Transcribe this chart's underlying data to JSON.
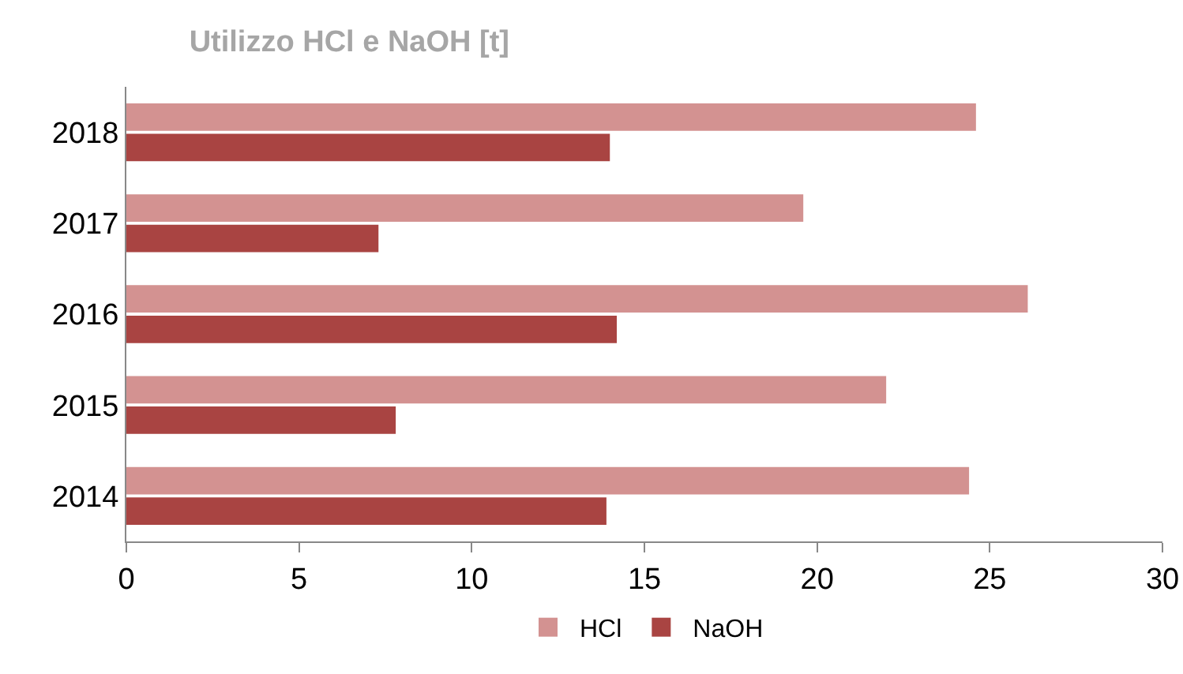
{
  "chart_data": {
    "type": "bar",
    "orientation": "horizontal",
    "title": "Utilizzo HCl e NaOH [t]",
    "categories": [
      "2018",
      "2017",
      "2016",
      "2015",
      "2014"
    ],
    "series": [
      {
        "name": "HCl",
        "color": "#d39291",
        "values": [
          24.6,
          19.6,
          26.1,
          22.0,
          24.4
        ]
      },
      {
        "name": "NaOH",
        "color": "#a94442",
        "values": [
          14.0,
          7.3,
          14.2,
          7.8,
          13.9
        ]
      }
    ],
    "xlim": [
      0,
      30
    ],
    "xticks": [
      0,
      5,
      10,
      15,
      20,
      25,
      30
    ],
    "grid": false,
    "legend": "bottom"
  }
}
